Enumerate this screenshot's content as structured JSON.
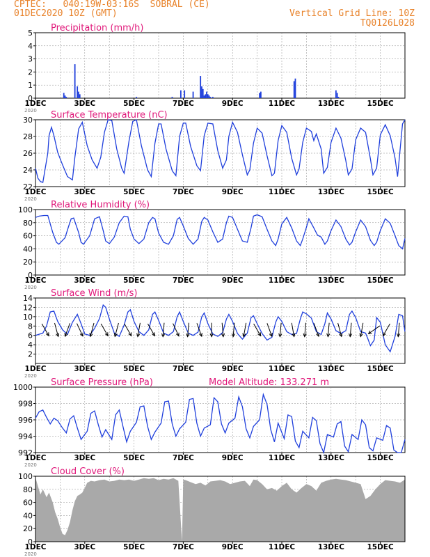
{
  "header": {
    "station": "CPTEC:   040:19W-03:16S  SOBRAL (CE)",
    "run": "01DEC2020 10Z (GMT)",
    "grid_note": "Vertical Grid Line: 10Z",
    "code": "TQ0126L028"
  },
  "colors": {
    "header": "#e8822a",
    "title": "#e0187a",
    "line": "#1f3fdc",
    "cloud": "#a9a9a9"
  },
  "x_axis": {
    "labels": [
      "1DEC",
      "3DEC",
      "5DEC",
      "7DEC",
      "9DEC",
      "11DEC",
      "13DEC",
      "15DEC"
    ],
    "year_mark": "2020",
    "range_days": [
      0,
      15
    ]
  },
  "chart_data": [
    {
      "id": "precip",
      "type": "bar",
      "title": "Precipitation (mm/h)",
      "ylim": [
        0,
        5
      ],
      "yticks": [
        0,
        1,
        2,
        3,
        4,
        5
      ],
      "x": [
        1.15,
        1.2,
        1.25,
        1.6,
        1.7,
        1.75,
        1.8,
        4.1,
        5.55,
        5.9,
        6.05,
        6.4,
        6.7,
        6.75,
        6.8,
        6.85,
        6.9,
        6.95,
        7.0,
        7.05,
        7.1,
        7.2,
        9.1,
        9.15,
        10.5,
        10.55,
        12.2,
        12.25,
        12.3
      ],
      "y": [
        0.4,
        0.2,
        0.1,
        2.6,
        0.9,
        0.5,
        0.3,
        0.1,
        0.1,
        0.6,
        0.6,
        0.5,
        1.7,
        0.9,
        0.7,
        0.2,
        0.3,
        0.5,
        0.3,
        0.2,
        0.1,
        0.1,
        0.4,
        0.5,
        1.3,
        1.5,
        0.6,
        0.4,
        0.1
      ]
    },
    {
      "id": "temp",
      "type": "line",
      "title": "Surface Temperature (nC)",
      "ylim": [
        22,
        30
      ],
      "yticks": [
        22,
        24,
        26,
        28,
        30
      ],
      "x": [
        0,
        0.1,
        0.2,
        0.3,
        0.5,
        0.55,
        0.65,
        0.75,
        0.9,
        1.1,
        1.3,
        1.5,
        1.6,
        1.75,
        1.9,
        2.1,
        2.3,
        2.5,
        2.65,
        2.8,
        2.95,
        3.1,
        3.3,
        3.5,
        3.6,
        3.8,
        3.95,
        4.1,
        4.3,
        4.55,
        4.7,
        4.85,
        5.0,
        5.1,
        5.3,
        5.55,
        5.7,
        5.85,
        6.0,
        6.1,
        6.3,
        6.55,
        6.7,
        6.85,
        7.0,
        7.2,
        7.4,
        7.6,
        7.75,
        7.85,
        8.0,
        8.2,
        8.4,
        8.6,
        8.7,
        8.85,
        9.0,
        9.2,
        9.4,
        9.6,
        9.7,
        9.85,
        10.0,
        10.2,
        10.4,
        10.6,
        10.7,
        10.85,
        11.0,
        11.2,
        11.3,
        11.4,
        11.6,
        11.7,
        11.85,
        12.0,
        12.2,
        12.4,
        12.6,
        12.7,
        12.85,
        13.0,
        13.2,
        13.4,
        13.6,
        13.7,
        13.85,
        14.0,
        14.2,
        14.4,
        14.6,
        14.7,
        14.9,
        15.0
      ],
      "y": [
        24.2,
        23,
        22.6,
        22.5,
        26,
        28.1,
        29.1,
        28.1,
        26.1,
        24.6,
        23.2,
        22.8,
        25.5,
        28.9,
        29.7,
        26.9,
        25.2,
        24.2,
        25.5,
        28.5,
        30.1,
        29.9,
        26.5,
        24.2,
        23.6,
        27.5,
        29.8,
        30.0,
        26.9,
        24.0,
        23.2,
        27.2,
        29.5,
        29.5,
        26.5,
        23.9,
        23.3,
        28.0,
        29.6,
        29.6,
        26.8,
        24.5,
        23.9,
        28.1,
        29.6,
        29.5,
        26.3,
        24.2,
        25.2,
        28.0,
        29.7,
        28.5,
        25.8,
        23.4,
        24.0,
        27.2,
        29.0,
        28.4,
        25.7,
        23.3,
        23.6,
        27.5,
        29.3,
        28.5,
        25.4,
        23.4,
        24.1,
        27.3,
        29.0,
        28.6,
        27.5,
        28.3,
        26.5,
        23.6,
        24.3,
        27.3,
        29.0,
        27.8,
        25.1,
        23.4,
        24.1,
        27.6,
        29.0,
        28.5,
        25.3,
        23.4,
        24.2,
        28.2,
        29.4,
        28.1,
        25.4,
        23.2,
        29.5,
        30.6
      ]
    },
    {
      "id": "rh",
      "type": "line",
      "title": "Relative Humidity (%)",
      "ylim": [
        0,
        100
      ],
      "yticks": [
        0,
        20,
        40,
        60,
        80,
        100
      ],
      "x": [
        0,
        0.15,
        0.35,
        0.5,
        0.7,
        0.85,
        0.95,
        1.2,
        1.35,
        1.45,
        1.55,
        1.75,
        1.85,
        1.95,
        2.2,
        2.4,
        2.6,
        2.75,
        2.85,
        3.0,
        3.2,
        3.4,
        3.6,
        3.75,
        3.85,
        4.0,
        4.2,
        4.4,
        4.6,
        4.75,
        4.85,
        5.0,
        5.2,
        5.4,
        5.6,
        5.75,
        5.85,
        6.0,
        6.2,
        6.4,
        6.6,
        6.75,
        6.85,
        7.0,
        7.2,
        7.4,
        7.6,
        7.75,
        7.85,
        8.0,
        8.2,
        8.4,
        8.6,
        8.75,
        8.85,
        9.0,
        9.2,
        9.4,
        9.6,
        9.75,
        9.85,
        10.0,
        10.2,
        10.4,
        10.6,
        10.75,
        10.85,
        11.0,
        11.1,
        11.3,
        11.45,
        11.6,
        11.75,
        11.85,
        12.0,
        12.2,
        12.4,
        12.6,
        12.75,
        12.85,
        13.0,
        13.2,
        13.4,
        13.6,
        13.75,
        13.85,
        14.0,
        14.2,
        14.4,
        14.6,
        14.75,
        14.9,
        15.0
      ],
      "y": [
        88,
        90,
        91,
        91,
        65,
        50,
        47,
        57,
        75,
        86,
        87,
        65,
        50,
        47,
        60,
        86,
        89,
        68,
        52,
        48,
        58,
        80,
        90,
        89,
        70,
        55,
        48,
        55,
        80,
        88,
        86,
        64,
        50,
        47,
        60,
        85,
        88,
        75,
        56,
        47,
        55,
        82,
        88,
        84,
        66,
        50,
        55,
        80,
        90,
        88,
        70,
        52,
        50,
        72,
        90,
        92,
        89,
        70,
        52,
        45,
        55,
        78,
        88,
        72,
        52,
        45,
        55,
        73,
        86,
        72,
        61,
        58,
        47,
        52,
        68,
        84,
        74,
        55,
        46,
        50,
        66,
        84,
        74,
        53,
        45,
        50,
        68,
        86,
        79,
        60,
        45,
        40,
        56
      ]
    },
    {
      "id": "wind",
      "type": "line",
      "title": "Surface Wind (m/s)",
      "ylim": [
        0,
        14
      ],
      "yticks": [
        2,
        4,
        6,
        8,
        10,
        12,
        14
      ],
      "x": [
        0,
        0.3,
        0.45,
        0.6,
        0.75,
        0.9,
        1.1,
        1.3,
        1.5,
        1.7,
        1.85,
        2.0,
        2.2,
        2.4,
        2.6,
        2.75,
        2.85,
        3.0,
        3.2,
        3.4,
        3.6,
        3.75,
        3.85,
        4.0,
        4.2,
        4.4,
        4.6,
        4.75,
        4.85,
        5.0,
        5.2,
        5.4,
        5.6,
        5.75,
        5.85,
        6.0,
        6.2,
        6.4,
        6.6,
        6.75,
        6.85,
        7.0,
        7.2,
        7.4,
        7.6,
        7.75,
        7.85,
        8.0,
        8.2,
        8.4,
        8.6,
        8.75,
        8.85,
        9.0,
        9.2,
        9.4,
        9.6,
        9.75,
        9.85,
        10.0,
        10.2,
        10.4,
        10.6,
        10.75,
        10.85,
        11.0,
        11.2,
        11.4,
        11.6,
        11.75,
        11.85,
        12.0,
        12.2,
        12.4,
        12.6,
        12.75,
        12.85,
        13.0,
        13.2,
        13.4,
        13.5,
        13.6,
        13.75,
        13.85,
        14.0,
        14.2,
        14.4,
        14.6,
        14.75,
        14.9,
        15.0
      ],
      "y": [
        6.0,
        6.5,
        8.0,
        11.0,
        11.2,
        9.0,
        7.2,
        6.2,
        8.8,
        10.5,
        8.5,
        6.3,
        6.0,
        7.5,
        9.6,
        12.5,
        12.0,
        9.5,
        6.5,
        5.8,
        8.2,
        11.0,
        11.5,
        9.0,
        6.8,
        6.0,
        7.2,
        10.5,
        11.0,
        9.2,
        6.5,
        6.0,
        6.8,
        10.0,
        11.0,
        9.0,
        6.5,
        6.0,
        6.7,
        10.0,
        10.8,
        8.5,
        6.3,
        5.8,
        6.6,
        9.5,
        10.5,
        9.0,
        6.4,
        5.2,
        6.5,
        9.8,
        10.2,
        8.5,
        6.4,
        5.0,
        5.6,
        8.8,
        10.0,
        9.0,
        6.8,
        6.2,
        6.4,
        9.5,
        11.0,
        10.6,
        9.7,
        6.8,
        6.2,
        8.5,
        10.8,
        9.5,
        7.0,
        6.4,
        7.0,
        10.5,
        11.2,
        9.8,
        6.8,
        6.5,
        5.2,
        3.8,
        5.0,
        9.8,
        8.8,
        4.0,
        2.5,
        5.8,
        10.5,
        10.2,
        6.8
      ],
      "arrows": [
        {
          "x": 0.4,
          "dir": -60
        },
        {
          "x": 0.85,
          "dir": -75
        },
        {
          "x": 1.3,
          "dir": -110
        },
        {
          "x": 1.8,
          "dir": -65
        },
        {
          "x": 2.3,
          "dir": -105
        },
        {
          "x": 2.8,
          "dir": -60
        },
        {
          "x": 3.3,
          "dir": -105
        },
        {
          "x": 3.75,
          "dir": -60
        },
        {
          "x": 4.2,
          "dir": -100
        },
        {
          "x": 4.7,
          "dir": -60
        },
        {
          "x": 5.2,
          "dir": -95
        },
        {
          "x": 5.7,
          "dir": -65
        },
        {
          "x": 6.2,
          "dir": -95
        },
        {
          "x": 6.65,
          "dir": -70
        },
        {
          "x": 7.15,
          "dir": -90
        },
        {
          "x": 7.6,
          "dir": -85
        },
        {
          "x": 8.05,
          "dir": -95
        },
        {
          "x": 8.5,
          "dir": -100
        },
        {
          "x": 9.0,
          "dir": -60
        },
        {
          "x": 9.5,
          "dir": -70
        },
        {
          "x": 9.95,
          "dir": -95
        },
        {
          "x": 10.45,
          "dir": -80
        },
        {
          "x": 10.95,
          "dir": -95
        },
        {
          "x": 11.4,
          "dir": -70
        },
        {
          "x": 11.9,
          "dir": -95
        },
        {
          "x": 12.35,
          "dir": -75
        },
        {
          "x": 12.8,
          "dir": -95
        },
        {
          "x": 13.25,
          "dir": -100
        },
        {
          "x": 13.75,
          "dir": -145
        },
        {
          "x": 14.25,
          "dir": -120
        },
        {
          "x": 14.75,
          "dir": -95
        }
      ]
    },
    {
      "id": "pres",
      "type": "line",
      "title": "Surface Pressure (hPa)",
      "annotation": "Model Altitude: 133.271 m",
      "ylim": [
        992,
        1000
      ],
      "yticks": [
        992,
        994,
        996,
        998,
        1000
      ],
      "x": [
        0,
        0.15,
        0.3,
        0.45,
        0.6,
        0.75,
        0.9,
        1.1,
        1.25,
        1.4,
        1.55,
        1.7,
        1.85,
        2.1,
        2.25,
        2.4,
        2.55,
        2.7,
        2.85,
        3.1,
        3.25,
        3.4,
        3.55,
        3.7,
        3.85,
        4.1,
        4.25,
        4.4,
        4.55,
        4.7,
        4.85,
        5.1,
        5.25,
        5.4,
        5.55,
        5.7,
        5.85,
        6.1,
        6.25,
        6.4,
        6.55,
        6.7,
        6.85,
        7.1,
        7.25,
        7.4,
        7.55,
        7.7,
        7.85,
        8.1,
        8.25,
        8.4,
        8.55,
        8.7,
        8.85,
        9.1,
        9.25,
        9.4,
        9.55,
        9.7,
        9.85,
        10.1,
        10.25,
        10.4,
        10.55,
        10.7,
        10.85,
        11.1,
        11.25,
        11.4,
        11.55,
        11.7,
        11.85,
        12.1,
        12.25,
        12.4,
        12.55,
        12.7,
        12.85,
        13.1,
        13.25,
        13.4,
        13.55,
        13.7,
        13.85,
        14.1,
        14.25,
        14.4,
        14.55,
        14.7,
        14.85,
        15.0
      ],
      "y": [
        996.2,
        997.0,
        997.2,
        996.3,
        995.5,
        996.2,
        995.9,
        995.0,
        994.4,
        996.1,
        996.5,
        995.0,
        993.6,
        994.6,
        996.8,
        997.1,
        995.4,
        993.9,
        994.8,
        993.6,
        996.6,
        997.2,
        995.2,
        993.3,
        994.6,
        995.7,
        997.6,
        997.7,
        995.2,
        993.6,
        994.5,
        995.6,
        998.2,
        998.3,
        995.5,
        994.0,
        994.9,
        995.7,
        998.5,
        998.6,
        995.6,
        994.0,
        995.0,
        995.4,
        998.7,
        998.2,
        995.5,
        994.4,
        995.6,
        996.2,
        998.8,
        997.6,
        994.9,
        993.8,
        995.2,
        996.0,
        999.1,
        997.9,
        994.8,
        993.3,
        995.6,
        993.7,
        996.6,
        996.4,
        993.4,
        992.6,
        994.6,
        993.8,
        996.3,
        995.9,
        993.1,
        992.0,
        994.2,
        993.9,
        995.5,
        995.8,
        992.8,
        992.1,
        994.2,
        993.6,
        996.0,
        995.4,
        992.6,
        992.2,
        993.8,
        993.5,
        995.3,
        995.0,
        992.3,
        991.9,
        992.0,
        993.6
      ]
    },
    {
      "id": "cloud",
      "type": "area",
      "title": "Cloud Cover (%)",
      "ylim": [
        0,
        100
      ],
      "yticks": [
        0,
        20,
        40,
        60,
        80,
        100
      ],
      "x": [
        0,
        0.1,
        0.2,
        0.3,
        0.45,
        0.55,
        0.7,
        0.8,
        0.9,
        1.0,
        1.1,
        1.2,
        1.3,
        1.4,
        1.5,
        1.6,
        1.7,
        1.8,
        1.9,
        2.0,
        2.1,
        2.25,
        2.4,
        2.6,
        2.8,
        3.0,
        3.2,
        3.4,
        3.6,
        3.8,
        4.0,
        4.2,
        4.4,
        4.6,
        4.8,
        5.0,
        5.2,
        5.4,
        5.6,
        5.8,
        5.95,
        6.0,
        6.1,
        6.3,
        6.5,
        6.7,
        6.9,
        7.1,
        7.3,
        7.5,
        7.7,
        7.9,
        8.1,
        8.3,
        8.5,
        8.7,
        8.85,
        9.0,
        9.2,
        9.4,
        9.6,
        9.8,
        10.0,
        10.2,
        10.4,
        10.6,
        10.8,
        11.0,
        11.2,
        11.4,
        11.6,
        11.8,
        12.0,
        12.2,
        12.4,
        12.6,
        12.8,
        13.0,
        13.2,
        13.4,
        13.6,
        13.8,
        14.0,
        14.2,
        14.4,
        14.6,
        14.8,
        15.0
      ],
      "y": [
        98,
        85,
        72,
        80,
        68,
        75,
        60,
        45,
        35,
        22,
        12,
        10,
        18,
        30,
        48,
        62,
        70,
        72,
        75,
        82,
        90,
        93,
        92,
        94,
        95,
        92,
        93,
        95,
        94,
        95,
        93,
        95,
        97,
        96,
        97,
        94,
        96,
        95,
        97,
        93,
        0,
        95,
        94,
        91,
        88,
        90,
        86,
        92,
        93,
        94,
        92,
        88,
        90,
        92,
        93,
        85,
        95,
        94,
        88,
        80,
        82,
        78,
        85,
        90,
        80,
        75,
        82,
        88,
        85,
        78,
        90,
        93,
        95,
        96,
        95,
        94,
        92,
        90,
        88,
        65,
        70,
        80,
        88,
        94,
        93,
        92,
        90,
        95
      ]
    }
  ]
}
